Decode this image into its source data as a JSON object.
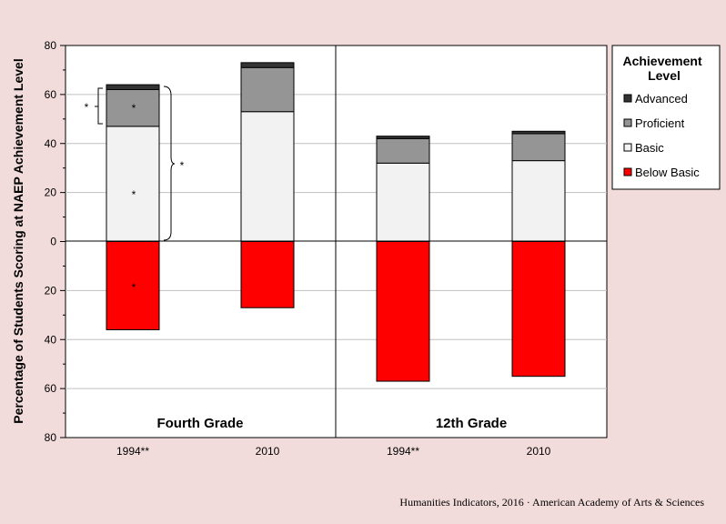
{
  "chart_data": {
    "type": "bar",
    "stacked": "diverging",
    "ylabel": "Percentage of Students Scoring at NAEP Achievement Level",
    "yticks": [
      "80",
      "60",
      "40",
      "20",
      "0",
      "20",
      "40",
      "60",
      "80"
    ],
    "ylim": [
      -80,
      80
    ],
    "grid": true,
    "legend": {
      "title": "Achievement Level",
      "placement": "right",
      "entries": [
        {
          "label": "Advanced",
          "color": "#333333"
        },
        {
          "label": "Proficient",
          "color": "#959595"
        },
        {
          "label": "Basic",
          "color": "#f2f2f2"
        },
        {
          "label": "Below Basic",
          "color": "#ff0000"
        }
      ]
    },
    "panels": [
      {
        "label": "Fourth Grade",
        "categories": [
          "1994**",
          "2010"
        ]
      },
      {
        "label": "12th Grade",
        "categories": [
          "1994**",
          "2010"
        ]
      }
    ],
    "categories": [
      "1994**",
      "2010",
      "1994**",
      "2010"
    ],
    "series": [
      {
        "name": "Below Basic",
        "values": [
          -36,
          -27,
          -57,
          -55
        ]
      },
      {
        "name": "Basic",
        "values": [
          47,
          53,
          32,
          33
        ]
      },
      {
        "name": "Proficient",
        "values": [
          15,
          18,
          10,
          11
        ]
      },
      {
        "name": "Advanced",
        "values": [
          2,
          2,
          1,
          1
        ]
      }
    ],
    "annotations": [
      "*",
      "*",
      "*",
      "*",
      "*"
    ]
  },
  "footer": "Humanities Indicators, 2016 · American Academy of Arts & Sciences"
}
